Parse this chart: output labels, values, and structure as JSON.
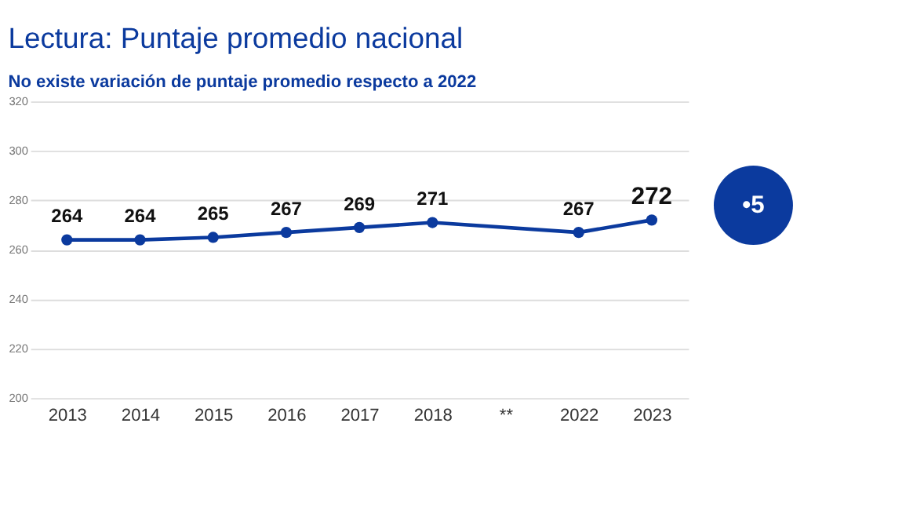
{
  "chart_data": {
    "type": "line",
    "title": "Lectura: Puntaje promedio nacional",
    "subtitle": "No existe variación de puntaje promedio respecto a 2022",
    "categories": [
      "2013",
      "2014",
      "2015",
      "2016",
      "2017",
      "2018",
      "**",
      "2022",
      "2023"
    ],
    "series": [
      {
        "color": "#0b3a9e",
        "values": [
          264,
          264,
          265,
          267,
          269,
          271,
          null,
          267,
          272
        ]
      }
    ],
    "ylim": [
      200,
      320
    ],
    "yticks": [
      200,
      220,
      240,
      260,
      280,
      300,
      320
    ],
    "grid": "y",
    "marker": "circle",
    "line_style": "solid",
    "data_labels": true,
    "legend": false,
    "annotations": [
      "•5"
    ]
  }
}
